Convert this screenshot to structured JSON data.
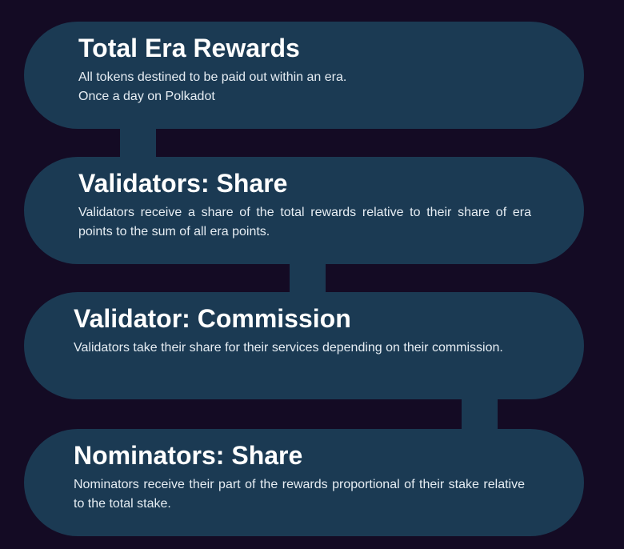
{
  "steps": [
    {
      "title": "Total Era Rewards",
      "lines": [
        "All tokens destined to be paid out within an era.",
        "Once a day on Polkadot"
      ]
    },
    {
      "title": "Validators: Share",
      "text": "Validators receive a share of the total rewards relative to their share of era points to the sum of all era points."
    },
    {
      "title": "Validator: Commission",
      "text": "Validators take their share for their services depending on their commission."
    },
    {
      "title": "Nominators: Share",
      "text": "Nominators receive their part of the rewards proportional of their stake relative to the total stake."
    }
  ],
  "colors": {
    "background": "#140b24",
    "pill": "#1b3a53",
    "title": "#ffffff",
    "text": "#e6edf3"
  }
}
